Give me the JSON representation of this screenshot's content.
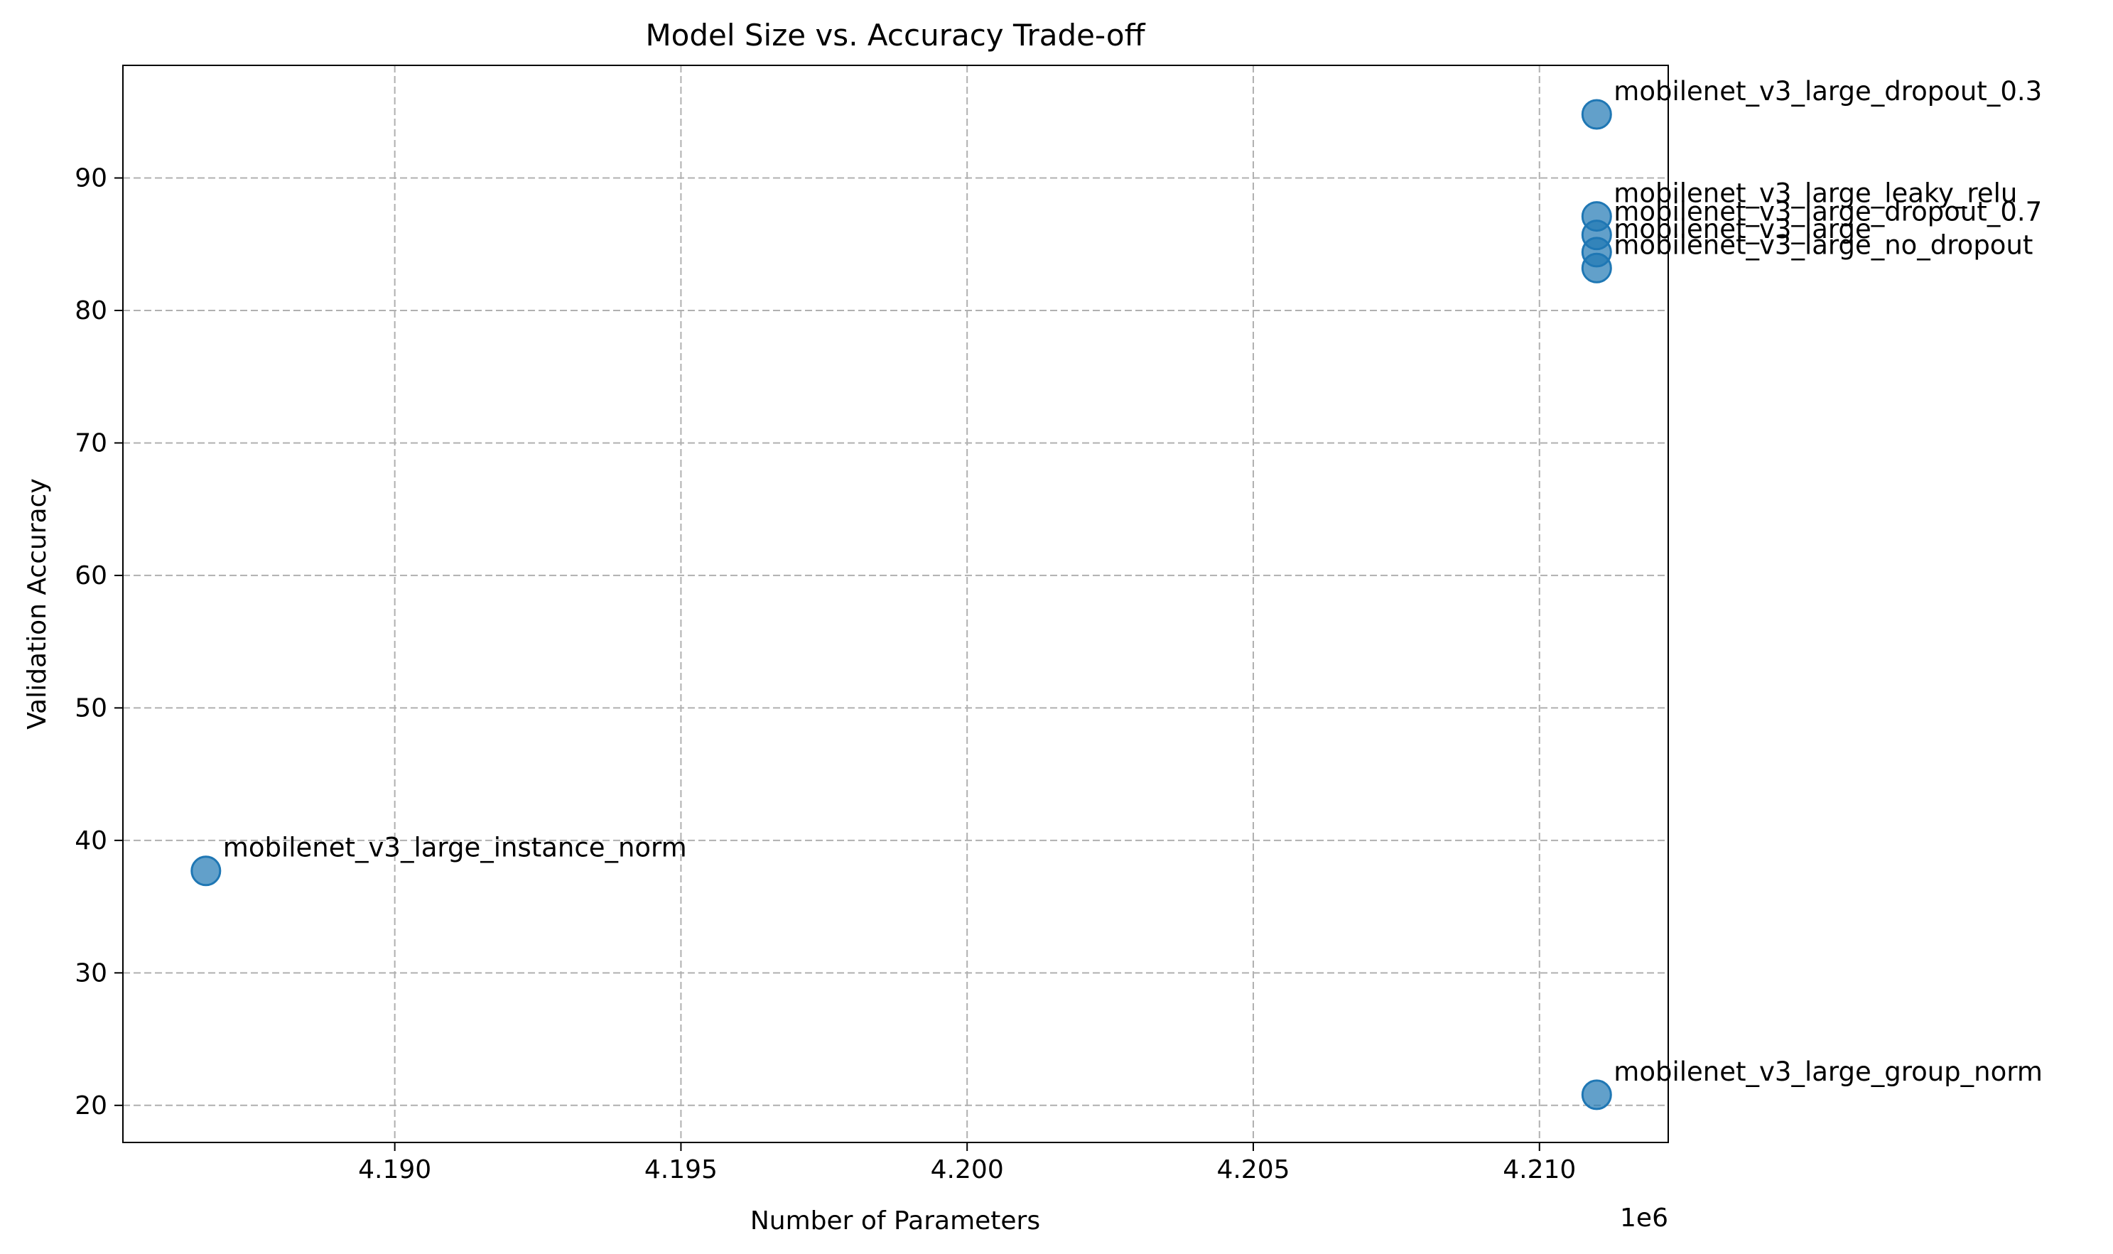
{
  "chart_data": {
    "type": "scatter",
    "title": "Model Size vs. Accuracy Trade-off",
    "xlabel": "Number of Parameters",
    "ylabel": "Validation Accuracy",
    "x_offset_label": "1e6",
    "xlim": [
      4.18525,
      4.21225
    ],
    "ylim": [
      17.2,
      98.5
    ],
    "xticks": [
      4.19,
      4.195,
      4.2,
      4.205,
      4.21
    ],
    "xtick_labels": [
      "4.190",
      "4.195",
      "4.200",
      "4.205",
      "4.210"
    ],
    "yticks": [
      20,
      30,
      40,
      50,
      60,
      70,
      80,
      90
    ],
    "ytick_labels": [
      "20",
      "30",
      "40",
      "50",
      "60",
      "70",
      "80",
      "90"
    ],
    "grid": true,
    "marker_color": "#1f77b4",
    "points": [
      {
        "label": "mobilenet_v3_large_dropout_0.3",
        "x": 4.211,
        "y": 94.8
      },
      {
        "label": "mobilenet_v3_large_leaky_relu",
        "x": 4.211,
        "y": 87.1
      },
      {
        "label": "mobilenet_v3_large_dropout_0.7",
        "x": 4.211,
        "y": 85.7
      },
      {
        "label": "mobilenet_v3_large",
        "x": 4.211,
        "y": 84.4
      },
      {
        "label": "mobilenet_v3_large_no_dropout",
        "x": 4.211,
        "y": 83.2
      },
      {
        "label": "mobilenet_v3_large_instance_norm",
        "x": 4.1867,
        "y": 37.7
      },
      {
        "label": "mobilenet_v3_large_group_norm",
        "x": 4.211,
        "y": 20.8
      }
    ]
  }
}
